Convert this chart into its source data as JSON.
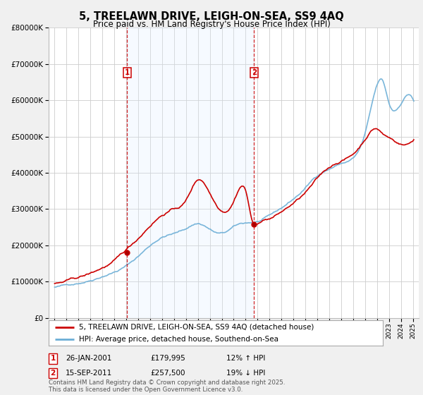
{
  "title": "5, TREELAWN DRIVE, LEIGH-ON-SEA, SS9 4AQ",
  "subtitle": "Price paid vs. HM Land Registry's House Price Index (HPI)",
  "legend_line1": "5, TREELAWN DRIVE, LEIGH-ON-SEA, SS9 4AQ (detached house)",
  "legend_line2": "HPI: Average price, detached house, Southend-on-Sea",
  "footer": "Contains HM Land Registry data © Crown copyright and database right 2025.\nThis data is licensed under the Open Government Licence v3.0.",
  "annotation1_date": "26-JAN-2001",
  "annotation1_price": "£179,995",
  "annotation1_hpi": "12% ↑ HPI",
  "annotation2_date": "15-SEP-2011",
  "annotation2_price": "£257,500",
  "annotation2_hpi": "19% ↓ HPI",
  "vline1_x": 2001.07,
  "vline2_x": 2011.71,
  "sale1_x": 2001.07,
  "sale1_y": 179995,
  "sale2_x": 2011.71,
  "sale2_y": 257500,
  "hpi_color": "#6baed6",
  "price_color": "#cc0000",
  "vline_color": "#cc0000",
  "shade_color": "#ddeeff",
  "ylim": [
    0,
    800000
  ],
  "xlim": [
    1994.5,
    2025.5
  ],
  "background_color": "#f0f0f0",
  "plot_background": "#ffffff"
}
